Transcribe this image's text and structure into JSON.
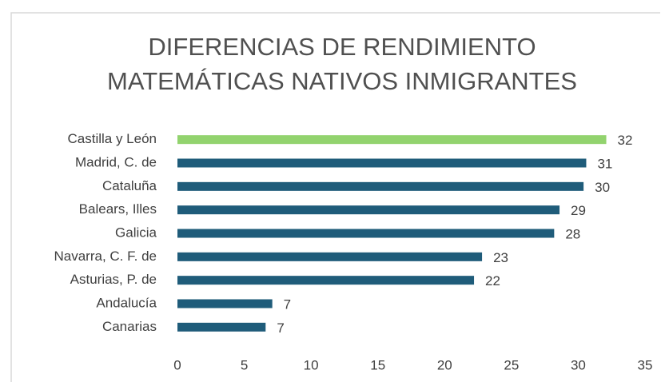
{
  "chart_data": {
    "type": "bar",
    "orientation": "horizontal",
    "title": [
      "DIFERENCIAS DE RENDIMIENTO",
      "MATEMÁTICAS NATIVOS INMIGRANTES"
    ],
    "categories": [
      "Castilla y León",
      "Madrid, C. de",
      "Cataluña",
      "Balears, Illes",
      "Galicia",
      "Navarra, C. F. de",
      "Asturias, P. de",
      "Andalucía",
      "Canarias"
    ],
    "values": [
      32.1,
      30.6,
      30.4,
      28.6,
      28.2,
      22.8,
      22.2,
      7.1,
      6.6
    ],
    "value_labels": [
      "32",
      "31",
      "30",
      "29",
      "28",
      "23",
      "22",
      "7",
      "7"
    ],
    "colors": [
      "#92d36e",
      "#1f5c7a",
      "#1f5c7a",
      "#1f5c7a",
      "#1f5c7a",
      "#1f5c7a",
      "#1f5c7a",
      "#1f5c7a",
      "#1f5c7a"
    ],
    "xlim": [
      0,
      35
    ],
    "xticks": [
      0,
      5,
      10,
      15,
      20,
      25,
      30,
      35
    ],
    "grid": false
  }
}
